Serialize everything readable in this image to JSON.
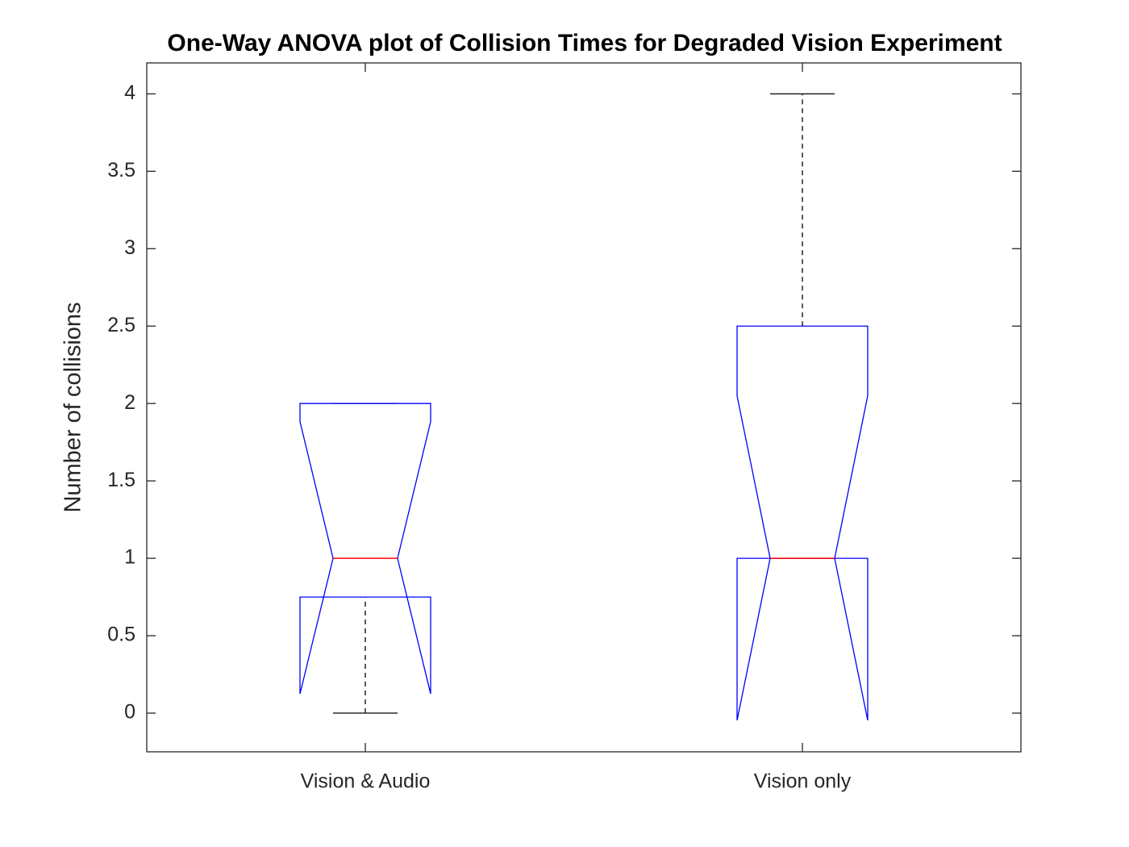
{
  "chart_data": {
    "type": "boxplot",
    "title": "One-Way ANOVA plot of Collision Times for Degraded Vision Experiment",
    "y_label": "Number of collisions",
    "categories": [
      "Vision & Audio",
      "Vision only"
    ],
    "boxes": [
      {
        "whisker_low": 0,
        "q1": 0.75,
        "median": 1,
        "q3": 2,
        "whisker_high": 2,
        "notch_low": 0.125,
        "notch_high": 1.883
      },
      {
        "whisker_low": 1,
        "q1": 1,
        "median": 1,
        "q3": 2.5,
        "whisker_high": 4,
        "notch_low": -0.047,
        "notch_high": 2.05
      }
    ],
    "box_color": "#0000ff",
    "median_color": "#ff0000",
    "whisker_color": "#000000",
    "ylim": [
      -0.25,
      4.2
    ],
    "yticks": [
      0,
      0.5,
      1,
      1.5,
      2,
      2.5,
      3,
      3.5,
      4
    ]
  }
}
